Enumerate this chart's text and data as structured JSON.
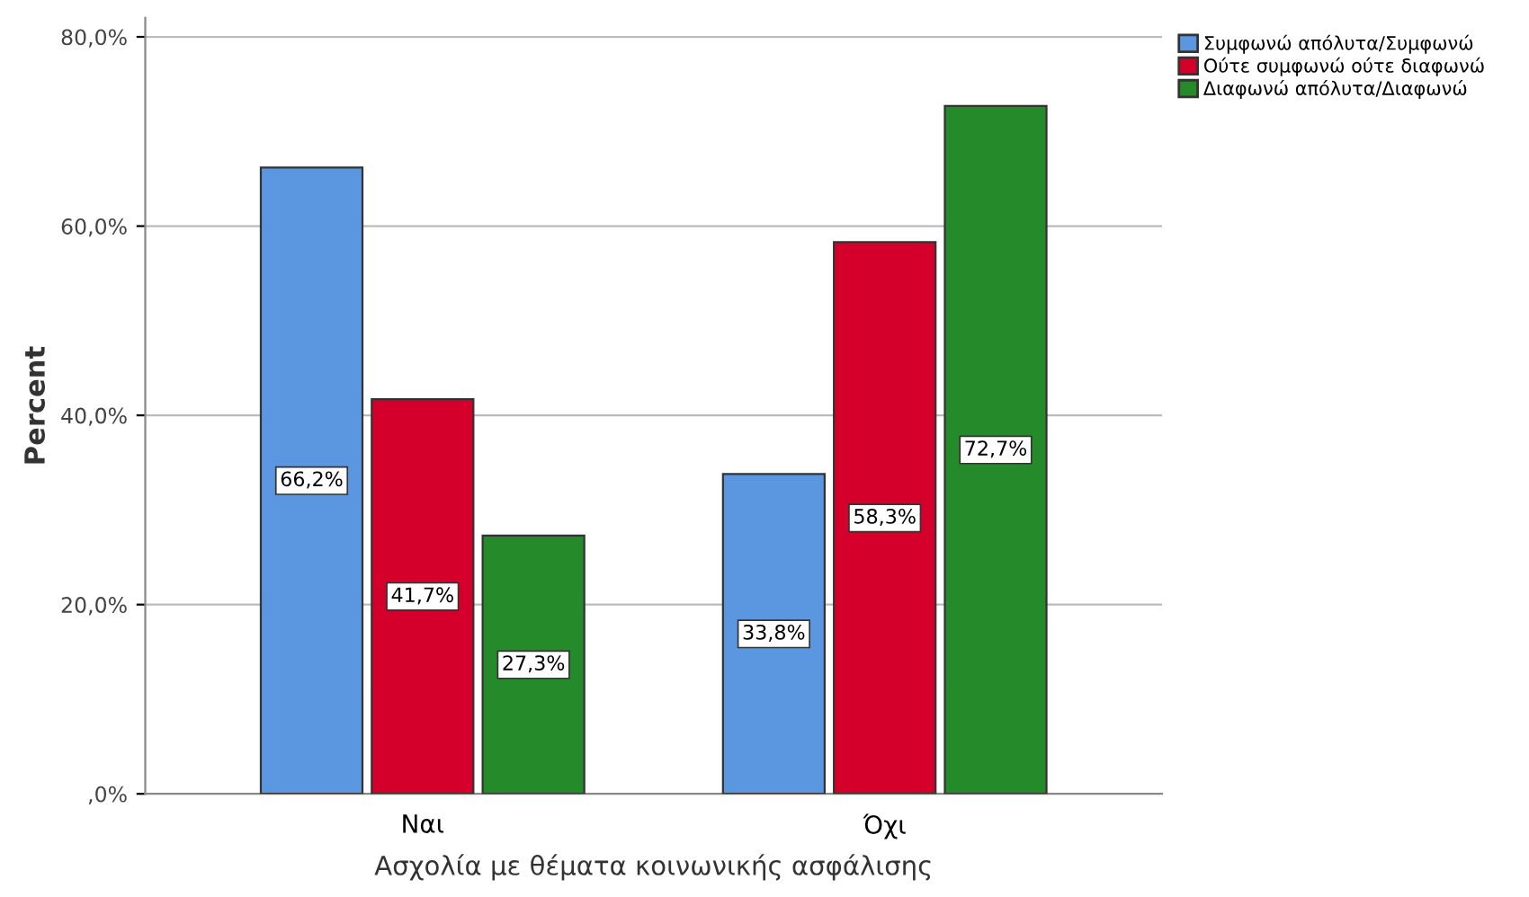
{
  "chart_data": {
    "type": "bar",
    "xlabel": "Ασχολία με θέματα κοινωνικής ασφάλισης",
    "ylabel": "Percent",
    "categories": [
      "Ναι",
      "Όχι"
    ],
    "series": [
      {
        "name": "Συμφωνώ απόλυτα/Συμφωνώ",
        "color": "#5b96e0",
        "values": [
          66.2,
          33.8
        ],
        "value_labels": [
          "66,2%",
          "33,8%"
        ]
      },
      {
        "name": "Ούτε συμφωνώ ούτε διαφωνώ",
        "color": "#d4002b",
        "values": [
          41.7,
          58.3
        ],
        "value_labels": [
          "41,7%",
          "58,3%"
        ]
      },
      {
        "name": "Διαφωνώ απόλυτα/Διαφωνώ",
        "color": "#248a2a",
        "values": [
          27.3,
          72.7
        ],
        "value_labels": [
          "27,3%",
          "72,7%"
        ]
      }
    ],
    "ylim": [
      0,
      82
    ],
    "yticks": [
      {
        "value": 0,
        "label": ",0%"
      },
      {
        "value": 20,
        "label": "20,0%"
      },
      {
        "value": 40,
        "label": "40,0%"
      },
      {
        "value": 60,
        "label": "60,0%"
      },
      {
        "value": 80,
        "label": "80,0%"
      }
    ],
    "grid": "y",
    "legend": "top right"
  }
}
